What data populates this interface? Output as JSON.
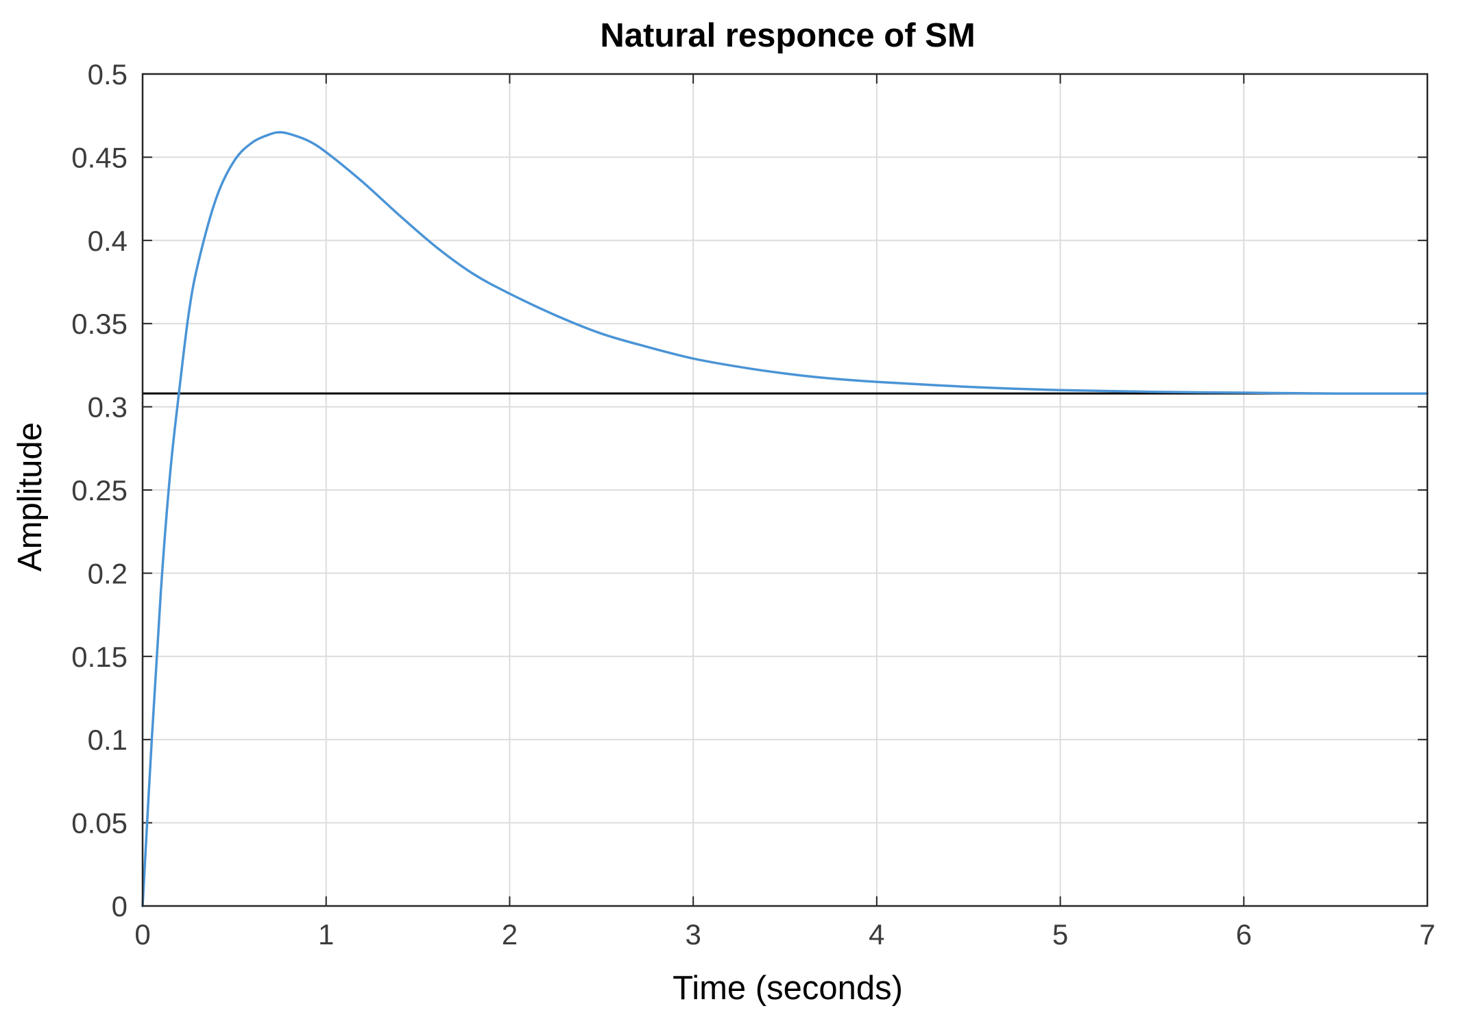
{
  "chart_data": {
    "type": "line",
    "title": "Natural responce of SM",
    "xlabel": "Time (seconds)",
    "ylabel": "Amplitude",
    "xlim": [
      0,
      7
    ],
    "ylim": [
      0,
      0.5
    ],
    "xticks": [
      0,
      1,
      2,
      3,
      4,
      5,
      6,
      7
    ],
    "xtick_labels": [
      "0",
      "1",
      "2",
      "3",
      "4",
      "5",
      "6",
      "7"
    ],
    "yticks": [
      0,
      0.05,
      0.1,
      0.15,
      0.2,
      0.25,
      0.3,
      0.35,
      0.4,
      0.45,
      0.5
    ],
    "ytick_labels": [
      "0",
      "0.05",
      "0.1",
      "0.15",
      "0.2",
      "0.25",
      "0.3",
      "0.35",
      "0.4",
      "0.45",
      "0.5"
    ],
    "grid": true,
    "series": [
      {
        "color": "#4a94d6",
        "x": [
          0,
          0.05,
          0.1,
          0.15,
          0.2,
          0.25,
          0.3,
          0.4,
          0.5,
          0.6,
          0.7,
          0.75,
          0.8,
          0.9,
          1.0,
          1.2,
          1.4,
          1.6,
          1.8,
          2.0,
          2.25,
          2.5,
          2.75,
          3.0,
          3.25,
          3.5,
          3.75,
          4.0,
          4.5,
          5.0,
          5.5,
          6.0,
          6.5,
          7.0
        ],
        "y": [
          0,
          0.1,
          0.19,
          0.26,
          0.31,
          0.355,
          0.385,
          0.425,
          0.448,
          0.459,
          0.464,
          0.465,
          0.464,
          0.46,
          0.453,
          0.435,
          0.415,
          0.396,
          0.38,
          0.368,
          0.355,
          0.344,
          0.336,
          0.329,
          0.324,
          0.32,
          0.317,
          0.315,
          0.312,
          0.31,
          0.309,
          0.3085,
          0.308,
          0.308
        ]
      }
    ],
    "reference_line": {
      "y": 0.308,
      "color": "#000000"
    }
  }
}
